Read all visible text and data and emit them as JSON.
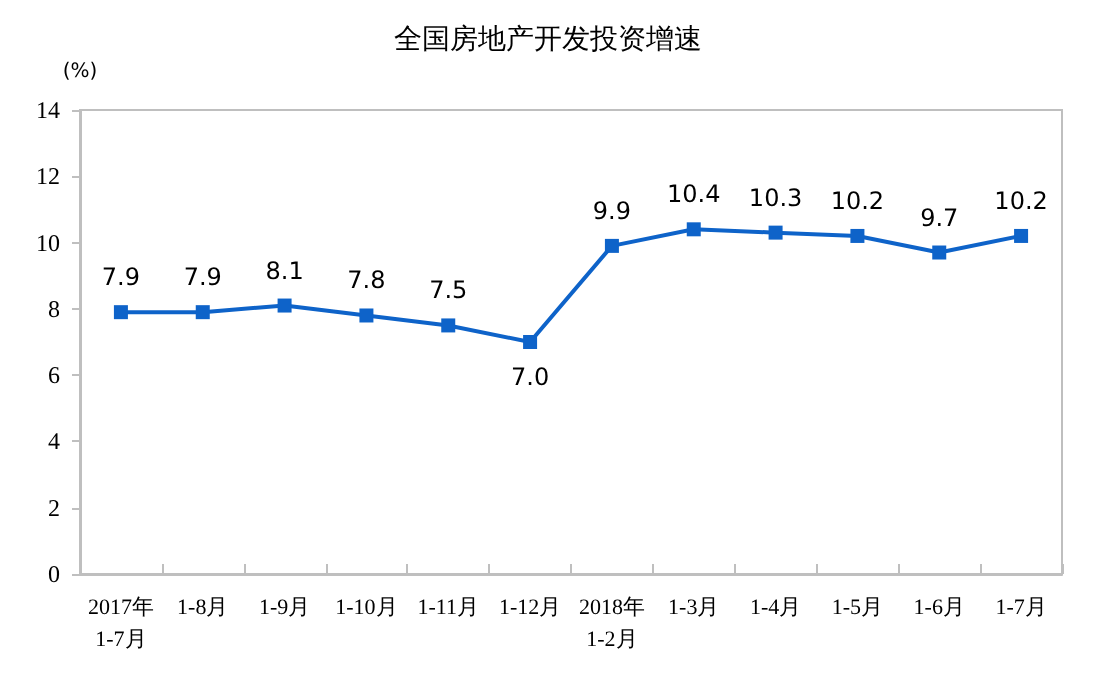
{
  "chart_data": {
    "type": "line",
    "title": "全国房地产开发投资增速",
    "ylabel": "(%)",
    "categories": [
      "2017年\n1-7月",
      "1-8月",
      "1-9月",
      "1-10月",
      "1-11月",
      "1-12月",
      "2018年\n1-2月",
      "1-3月",
      "1-4月",
      "1-5月",
      "1-6月",
      "1-7月"
    ],
    "series": [
      {
        "color": "#0e63c9",
        "values": [
          7.9,
          7.9,
          8.1,
          7.8,
          7.5,
          7.0,
          9.9,
          10.4,
          10.3,
          10.2,
          9.7,
          10.2
        ],
        "value_labels": [
          "7.9",
          "7.9",
          "8.1",
          "7.8",
          "7.5",
          "7.0",
          "9.9",
          "10.4",
          "10.3",
          "10.2",
          "9.7",
          "10.2"
        ]
      }
    ],
    "ylim": [
      0,
      14
    ],
    "yticks": [
      0,
      2,
      4,
      6,
      8,
      10,
      12,
      14
    ],
    "grid": false,
    "marker": "square",
    "line_style": "solid"
  }
}
